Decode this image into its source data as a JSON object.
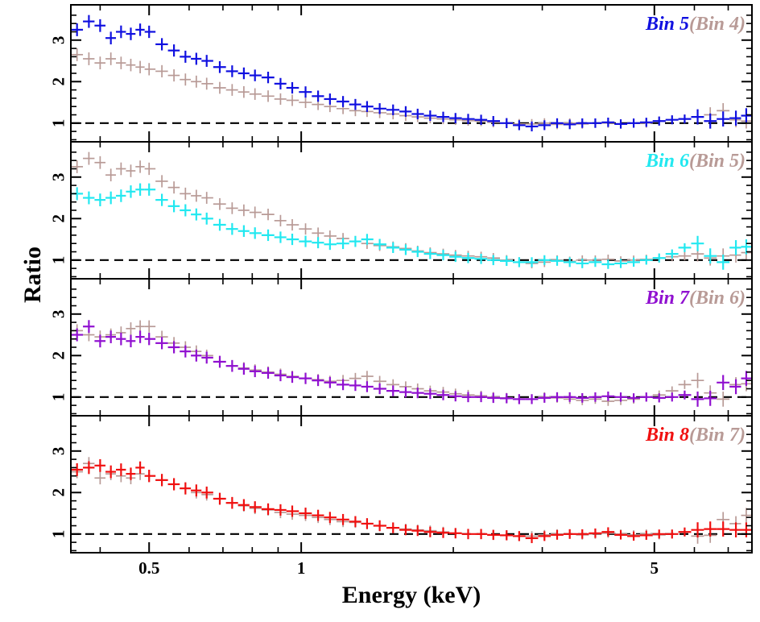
{
  "chart_data": {
    "type": "scatter",
    "xscale": "log",
    "xlim": [
      0.35,
      7.8
    ],
    "ylim": [
      0.55,
      3.85
    ],
    "xlabel": "Energy (keV)",
    "ylabel": "Ratio",
    "x_ticks": [
      {
        "value": 0.5,
        "label": "0.5"
      },
      {
        "value": 1,
        "label": "1"
      },
      {
        "value": 5,
        "label": "5"
      }
    ],
    "y_ticks": [
      {
        "value": 1,
        "label": "1"
      },
      {
        "value": 2,
        "label": "2"
      },
      {
        "value": 3,
        "label": "3"
      }
    ],
    "reference_line": 1,
    "energies": [
      0.36,
      0.38,
      0.4,
      0.42,
      0.44,
      0.46,
      0.48,
      0.5,
      0.53,
      0.56,
      0.59,
      0.62,
      0.65,
      0.69,
      0.73,
      0.77,
      0.81,
      0.86,
      0.91,
      0.96,
      1.02,
      1.08,
      1.14,
      1.21,
      1.28,
      1.35,
      1.43,
      1.52,
      1.61,
      1.7,
      1.8,
      1.91,
      2.02,
      2.14,
      2.27,
      2.4,
      2.55,
      2.7,
      2.86,
      3.03,
      3.21,
      3.4,
      3.6,
      3.82,
      4.05,
      4.29,
      4.55,
      4.82,
      5.11,
      5.42,
      5.74,
      6.09,
      6.45,
      6.84,
      7.25,
      7.6
    ],
    "panels": [
      {
        "title": "Bin 5",
        "compare": "(Bin 4)",
        "color": "#1010e0",
        "compare_color": "#b89a96",
        "series": [
          {
            "name": "Bin 5",
            "color": "#1010e0",
            "values": [
              3.25,
              3.45,
              3.35,
              3.05,
              3.2,
              3.15,
              3.25,
              3.2,
              2.9,
              2.75,
              2.6,
              2.55,
              2.5,
              2.35,
              2.25,
              2.2,
              2.15,
              2.1,
              1.95,
              1.85,
              1.75,
              1.65,
              1.58,
              1.52,
              1.45,
              1.4,
              1.35,
              1.32,
              1.28,
              1.22,
              1.18,
              1.15,
              1.12,
              1.1,
              1.08,
              1.05,
              1.0,
              0.95,
              0.92,
              0.95,
              1.0,
              0.97,
              1.0,
              1.0,
              1.02,
              0.98,
              1.0,
              1.02,
              1.05,
              1.08,
              1.1,
              1.15,
              1.05,
              1.1,
              1.12,
              1.18
            ]
          },
          {
            "name": "Bin 4",
            "color": "#b89a96",
            "values": [
              2.65,
              2.55,
              2.45,
              2.55,
              2.45,
              2.4,
              2.35,
              2.3,
              2.25,
              2.15,
              2.05,
              2.0,
              1.95,
              1.85,
              1.8,
              1.75,
              1.7,
              1.65,
              1.58,
              1.55,
              1.5,
              1.45,
              1.4,
              1.35,
              1.3,
              1.28,
              1.25,
              1.22,
              1.18,
              1.15,
              1.12,
              1.1,
              1.08,
              1.06,
              1.05,
              1.02,
              1.0,
              0.98,
              0.98,
              1.0,
              0.97,
              1.0,
              0.98,
              1.0,
              1.0,
              0.98,
              1.0,
              1.0,
              1.05,
              1.08,
              1.1,
              1.15,
              1.2,
              1.3,
              1.08,
              1.05
            ]
          }
        ]
      },
      {
        "title": "Bin 6",
        "compare": "(Bin 5)",
        "color": "#22e8f0",
        "compare_color": "#b89a96",
        "series": [
          {
            "name": "Bin 6",
            "color": "#22e8f0",
            "values": [
              2.6,
              2.5,
              2.45,
              2.5,
              2.55,
              2.65,
              2.7,
              2.7,
              2.45,
              2.3,
              2.2,
              2.1,
              2.0,
              1.85,
              1.75,
              1.7,
              1.65,
              1.6,
              1.55,
              1.5,
              1.45,
              1.42,
              1.38,
              1.4,
              1.45,
              1.5,
              1.38,
              1.3,
              1.25,
              1.2,
              1.15,
              1.12,
              1.08,
              1.05,
              1.03,
              1.0,
              0.98,
              0.95,
              0.95,
              1.0,
              0.98,
              0.95,
              0.92,
              0.95,
              0.9,
              0.92,
              0.95,
              1.0,
              1.05,
              1.15,
              1.3,
              1.4,
              1.1,
              0.95,
              1.3,
              1.32
            ]
          },
          {
            "name": "Bin 5",
            "color": "#b89a96",
            "values": [
              3.25,
              3.45,
              3.35,
              3.05,
              3.2,
              3.15,
              3.25,
              3.2,
              2.9,
              2.75,
              2.6,
              2.55,
              2.5,
              2.35,
              2.25,
              2.2,
              2.15,
              2.1,
              1.95,
              1.85,
              1.75,
              1.65,
              1.58,
              1.52,
              1.45,
              1.4,
              1.35,
              1.32,
              1.28,
              1.22,
              1.18,
              1.15,
              1.12,
              1.1,
              1.08,
              1.05,
              1.0,
              0.95,
              0.92,
              0.95,
              1.0,
              0.97,
              1.0,
              1.0,
              1.02,
              0.98,
              1.0,
              1.02,
              1.05,
              1.08,
              1.1,
              1.15,
              1.05,
              1.1,
              1.12,
              1.18
            ]
          }
        ]
      },
      {
        "title": "Bin 7",
        "compare": "(Bin 6)",
        "color": "#9010d0",
        "compare_color": "#b89a96",
        "series": [
          {
            "name": "Bin 7",
            "color": "#9010d0",
            "values": [
              2.5,
              2.7,
              2.35,
              2.45,
              2.4,
              2.35,
              2.45,
              2.4,
              2.3,
              2.2,
              2.1,
              2.0,
              1.95,
              1.85,
              1.75,
              1.68,
              1.62,
              1.58,
              1.52,
              1.48,
              1.45,
              1.4,
              1.35,
              1.3,
              1.28,
              1.25,
              1.2,
              1.15,
              1.12,
              1.1,
              1.08,
              1.05,
              1.02,
              1.0,
              1.0,
              0.98,
              0.97,
              0.95,
              0.95,
              0.98,
              1.0,
              1.0,
              0.98,
              1.0,
              1.02,
              1.0,
              0.98,
              1.0,
              0.98,
              1.0,
              1.05,
              0.95,
              0.97,
              1.35,
              1.25,
              1.45
            ]
          },
          {
            "name": "Bin 6",
            "color": "#b89a96",
            "values": [
              2.6,
              2.5,
              2.45,
              2.5,
              2.55,
              2.65,
              2.7,
              2.7,
              2.45,
              2.3,
              2.2,
              2.1,
              2.0,
              1.85,
              1.75,
              1.7,
              1.65,
              1.6,
              1.55,
              1.5,
              1.45,
              1.42,
              1.38,
              1.4,
              1.45,
              1.5,
              1.38,
              1.3,
              1.25,
              1.2,
              1.15,
              1.12,
              1.08,
              1.05,
              1.03,
              1.0,
              0.98,
              0.95,
              0.95,
              1.0,
              0.98,
              0.95,
              0.92,
              0.95,
              0.9,
              0.92,
              0.95,
              1.0,
              1.05,
              1.15,
              1.3,
              1.4,
              1.1,
              0.95,
              1.3,
              1.32
            ]
          }
        ]
      },
      {
        "title": "Bin 8",
        "compare": "(Bin 7)",
        "color": "#f01010",
        "compare_color": "#b89a96",
        "series": [
          {
            "name": "Bin 8",
            "color": "#f01010",
            "values": [
              2.55,
              2.6,
              2.65,
              2.5,
              2.55,
              2.45,
              2.6,
              2.4,
              2.3,
              2.2,
              2.1,
              2.05,
              2.0,
              1.85,
              1.75,
              1.7,
              1.65,
              1.6,
              1.58,
              1.55,
              1.5,
              1.45,
              1.4,
              1.35,
              1.3,
              1.25,
              1.2,
              1.15,
              1.1,
              1.08,
              1.05,
              1.03,
              1.02,
              1.0,
              1.0,
              0.98,
              0.97,
              0.95,
              0.9,
              0.95,
              0.98,
              1.0,
              1.0,
              1.02,
              1.05,
              0.98,
              0.95,
              0.97,
              1.0,
              1.0,
              1.05,
              1.1,
              1.12,
              1.12,
              1.1,
              1.1
            ]
          },
          {
            "name": "Bin 7",
            "color": "#b89a96",
            "values": [
              2.5,
              2.7,
              2.35,
              2.45,
              2.4,
              2.35,
              2.45,
              2.4,
              2.3,
              2.2,
              2.1,
              2.0,
              1.95,
              1.85,
              1.75,
              1.68,
              1.62,
              1.58,
              1.52,
              1.48,
              1.45,
              1.4,
              1.35,
              1.3,
              1.28,
              1.25,
              1.2,
              1.15,
              1.12,
              1.1,
              1.08,
              1.05,
              1.02,
              1.0,
              1.0,
              0.98,
              0.97,
              0.95,
              0.95,
              0.98,
              1.0,
              1.0,
              0.98,
              1.0,
              1.02,
              1.0,
              0.98,
              1.0,
              0.98,
              1.0,
              1.05,
              0.95,
              0.97,
              1.35,
              1.25,
              1.45
            ]
          }
        ]
      }
    ]
  }
}
